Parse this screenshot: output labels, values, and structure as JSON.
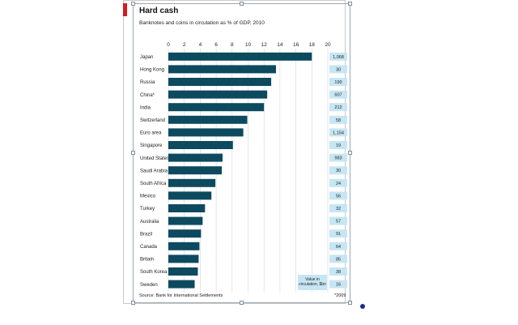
{
  "chart_data": {
    "type": "bar",
    "orientation": "horizontal",
    "title": "Hard cash",
    "subtitle": "Banknotes and coins in circulation as % of GDP, 2010",
    "source": "Source: Bank for International Settlements",
    "footnote": "*2009",
    "xlim": [
      0,
      20
    ],
    "xticks": [
      "0",
      "2",
      "4",
      "6",
      "8",
      "10",
      "12",
      "14",
      "16",
      "18",
      "20"
    ],
    "grid": true,
    "categories": [
      "Japan",
      "Hong Kong",
      "Russia",
      "China*",
      "India",
      "Switzerland",
      "Euro area",
      "Singapore",
      "United States",
      "Saudi Arabia",
      "South Africa",
      "Mexico",
      "Turkey",
      "Australia",
      "Brazil",
      "Canada",
      "Britain",
      "South Korea",
      "Sweden"
    ],
    "values": [
      18.0,
      13.5,
      12.9,
      12.4,
      12.0,
      9.9,
      9.4,
      8.1,
      6.8,
      6.7,
      5.9,
      5.4,
      4.6,
      4.3,
      4.1,
      3.9,
      3.8,
      3.7,
      3.3
    ],
    "side_values": [
      "1,068",
      "30",
      "190",
      "607",
      "212",
      "58",
      "1,154",
      "19",
      "983",
      "30",
      "24",
      "56",
      "32",
      "57",
      "91",
      "64",
      "85",
      "38",
      "16"
    ],
    "side_legend": "Value in circulation, $bn",
    "colors": {
      "bar": "#0d4a60",
      "side_box": "#c6e6f3",
      "accent": "#d71920",
      "grid": "#cfd6da"
    }
  }
}
